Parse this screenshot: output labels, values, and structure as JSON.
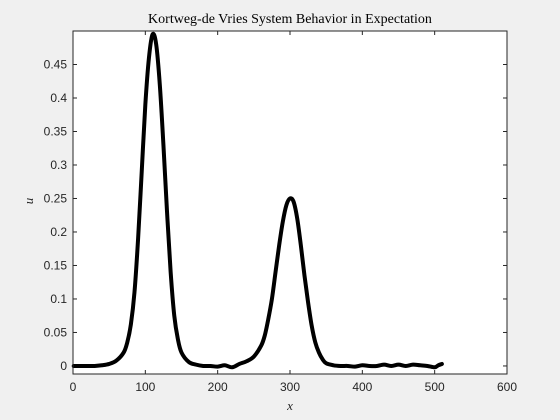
{
  "chart_data": {
    "type": "line",
    "title": "Kortweg-de Vries System Behavior in Expectation",
    "xlabel": "x",
    "ylabel": "u",
    "xlim": [
      0,
      600
    ],
    "ylim": [
      -0.012,
      0.5
    ],
    "xticks": [
      0,
      100,
      200,
      300,
      400,
      500,
      600
    ],
    "xtick_labels": [
      "0",
      "100",
      "200",
      "300",
      "400",
      "500",
      "600"
    ],
    "yticks": [
      0,
      0.05,
      0.1,
      0.15,
      0.2,
      0.25,
      0.3,
      0.35,
      0.4,
      0.45
    ],
    "ytick_labels": [
      "0",
      "0.05",
      "0.1",
      "0.15",
      "0.2",
      "0.25",
      "0.3",
      "0.35",
      "0.4",
      "0.45"
    ],
    "grid": false,
    "legend": false,
    "colors": {
      "line": "#000000",
      "axes_bg": "#ffffff",
      "figure_bg": "#f0f0f0",
      "axis": "#262626"
    },
    "series": [
      {
        "x": [
          1,
          10,
          20,
          30,
          40,
          50,
          60,
          70,
          75,
          80,
          85,
          90,
          95,
          100,
          105,
          110,
          115,
          120,
          125,
          130,
          135,
          140,
          145,
          150,
          160,
          170,
          180,
          190,
          200,
          210,
          220,
          230,
          240,
          250,
          260,
          265,
          270,
          275,
          280,
          285,
          290,
          295,
          300,
          305,
          310,
          315,
          320,
          325,
          330,
          335,
          340,
          345,
          350,
          360,
          370,
          380,
          390,
          400,
          410,
          420,
          430,
          440,
          450,
          460,
          470,
          480,
          490,
          500,
          505,
          510
        ],
        "y": [
          0,
          0,
          0,
          0,
          0.001,
          0.003,
          0.008,
          0.02,
          0.035,
          0.062,
          0.11,
          0.19,
          0.29,
          0.39,
          0.46,
          0.495,
          0.48,
          0.42,
          0.33,
          0.23,
          0.14,
          0.075,
          0.04,
          0.02,
          0.006,
          0.002,
          0,
          0,
          -0.001,
          0.001,
          -0.002,
          0.003,
          0.007,
          0.014,
          0.03,
          0.045,
          0.07,
          0.1,
          0.14,
          0.18,
          0.215,
          0.24,
          0.25,
          0.245,
          0.22,
          0.18,
          0.135,
          0.095,
          0.06,
          0.035,
          0.02,
          0.01,
          0.004,
          0.001,
          0,
          0,
          -0.001,
          0.001,
          0,
          0,
          0.002,
          0,
          0.002,
          0,
          0.002,
          0.001,
          0,
          -0.002,
          0.001,
          0.003
        ]
      }
    ]
  }
}
